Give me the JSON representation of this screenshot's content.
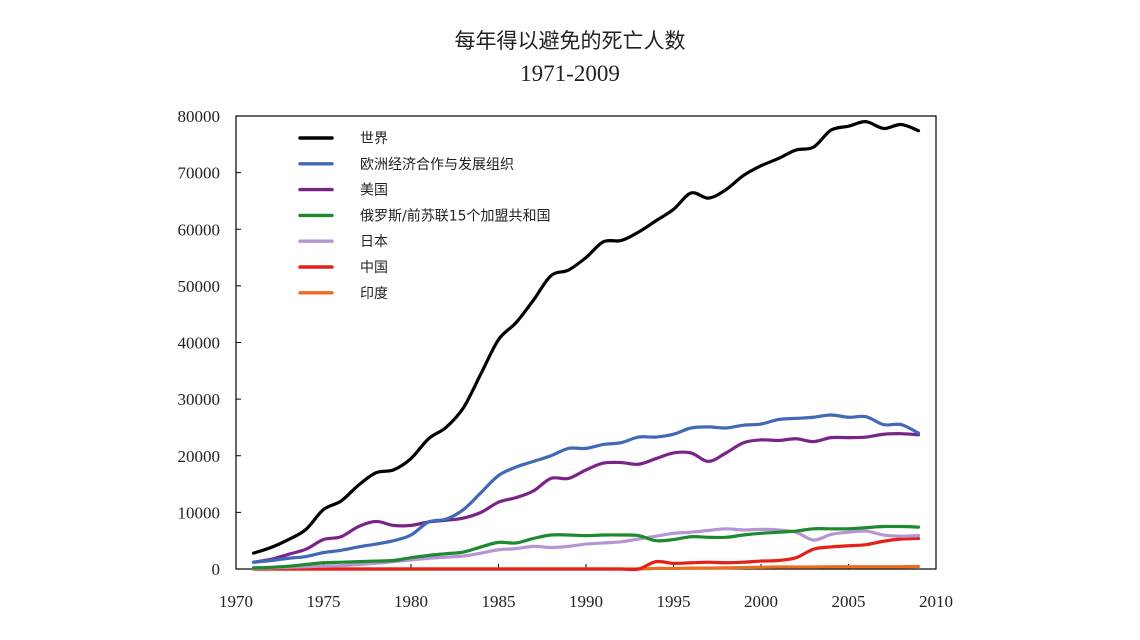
{
  "chart_data": {
    "type": "line",
    "title": "每年得以避免的死亡人数",
    "subtitle": "1971-2009",
    "xlabel": "",
    "ylabel": "",
    "xlim": [
      1970,
      2010
    ],
    "ylim": [
      0,
      80000
    ],
    "x_ticks": [
      "1970",
      "1975",
      "1980",
      "1985",
      "1990",
      "1995",
      "2000",
      "2005",
      "2010"
    ],
    "y_ticks": [
      "0",
      "10000",
      "20000",
      "30000",
      "40000",
      "50000",
      "60000",
      "70000",
      "80000"
    ],
    "grid": false,
    "legend_position": "top-left",
    "x": [
      1971,
      1972,
      1973,
      1974,
      1975,
      1976,
      1977,
      1978,
      1979,
      1980,
      1981,
      1982,
      1983,
      1984,
      1985,
      1986,
      1987,
      1988,
      1989,
      1990,
      1991,
      1992,
      1993,
      1994,
      1995,
      1996,
      1997,
      1998,
      1999,
      2000,
      2001,
      2002,
      2003,
      2004,
      2005,
      2006,
      2007,
      2008,
      2009
    ],
    "series": [
      {
        "name": "世界",
        "color": "#000000",
        "values": [
          2800,
          3800,
          5200,
          7000,
          10500,
          12000,
          14800,
          17000,
          17500,
          19500,
          23000,
          25000,
          28500,
          34500,
          40500,
          43500,
          47500,
          51800,
          52800,
          55000,
          57800,
          58000,
          59500,
          61500,
          63500,
          66400,
          65500,
          67000,
          69500,
          71200,
          72500,
          74000,
          74500,
          77500,
          78200,
          79000,
          77800,
          78500,
          77400
        ]
      },
      {
        "name": "欧洲经济合作与发展组织",
        "color": "#4169b8",
        "values": [
          1200,
          1500,
          1900,
          2200,
          2900,
          3300,
          3900,
          4400,
          5000,
          6000,
          8300,
          8800,
          10500,
          13500,
          16500,
          18000,
          19000,
          20000,
          21300,
          21300,
          22000,
          22300,
          23300,
          23300,
          23800,
          24900,
          25100,
          24900,
          25400,
          25600,
          26400,
          26600,
          26800,
          27200,
          26800,
          26900,
          25500,
          25500,
          24000
        ]
      },
      {
        "name": "美国",
        "color": "#7a2389",
        "values": [
          1200,
          1700,
          2600,
          3500,
          5200,
          5700,
          7500,
          8400,
          7700,
          7700,
          8300,
          8600,
          9000,
          10000,
          11800,
          12600,
          13800,
          16000,
          16000,
          17500,
          18700,
          18800,
          18500,
          19500,
          20500,
          20500,
          19000,
          20500,
          22300,
          22800,
          22700,
          23000,
          22500,
          23200,
          23200,
          23300,
          23800,
          23900,
          23700
        ]
      },
      {
        "name": "俄罗斯/前苏联15个加盟共和国",
        "color": "#1d8a2e",
        "values": [
          200,
          300,
          500,
          800,
          1100,
          1200,
          1300,
          1400,
          1500,
          2000,
          2400,
          2700,
          3000,
          3900,
          4700,
          4600,
          5400,
          6000,
          6000,
          5900,
          6000,
          6000,
          5900,
          5000,
          5200,
          5700,
          5600,
          5600,
          6000,
          6300,
          6500,
          6700,
          7100,
          7100,
          7100,
          7300,
          7500,
          7500,
          7400
        ]
      },
      {
        "name": "日本",
        "color": "#b695d3",
        "values": [
          100,
          200,
          300,
          400,
          500,
          600,
          800,
          1000,
          1300,
          1600,
          1900,
          2100,
          2300,
          2800,
          3400,
          3600,
          4000,
          3800,
          4000,
          4400,
          4600,
          4800,
          5300,
          5800,
          6300,
          6500,
          6800,
          7100,
          6900,
          7000,
          6900,
          6500,
          5100,
          6100,
          6500,
          6700,
          6000,
          5800,
          5900
        ]
      },
      {
        "name": "中国",
        "color": "#e32119",
        "values": [
          0,
          0,
          0,
          0,
          0,
          0,
          0,
          0,
          0,
          0,
          0,
          0,
          0,
          0,
          0,
          0,
          0,
          0,
          0,
          0,
          0,
          0,
          0,
          1300,
          1000,
          1100,
          1200,
          1100,
          1200,
          1400,
          1500,
          2000,
          3500,
          3900,
          4100,
          4300,
          4900,
          5300,
          5400
        ]
      },
      {
        "name": "印度",
        "color": "#ed6c1d",
        "values": [
          0,
          0,
          0,
          0,
          0,
          0,
          0,
          0,
          0,
          0,
          0,
          0,
          0,
          0,
          0,
          0,
          0,
          0,
          0,
          0,
          0,
          0,
          0,
          100,
          100,
          150,
          150,
          200,
          250,
          300,
          350,
          350,
          350,
          400,
          400,
          400,
          400,
          400,
          450
        ]
      }
    ]
  }
}
